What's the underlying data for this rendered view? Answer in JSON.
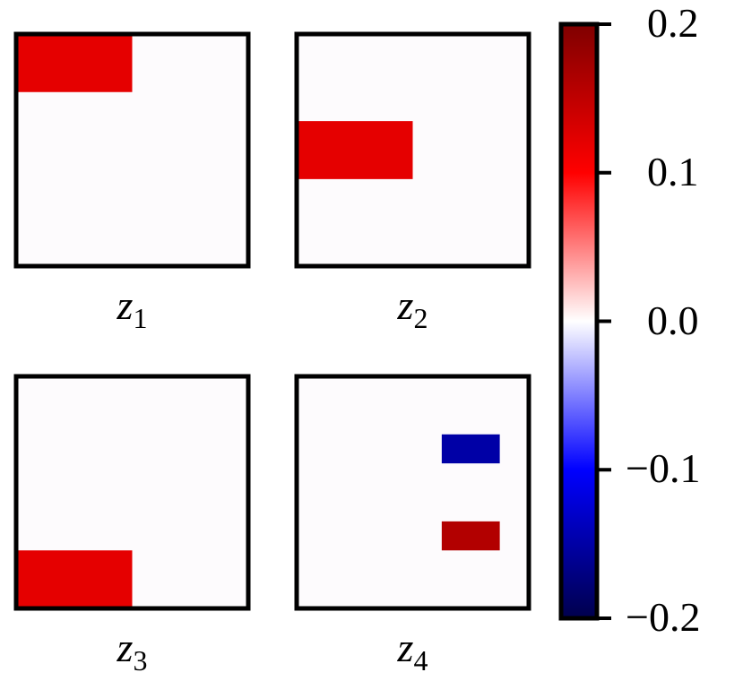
{
  "chart_data": {
    "type": "heatmap",
    "panels": [
      {
        "name": "z",
        "subscript": "1",
        "grid": [
          8,
          8
        ],
        "cells": [
          {
            "row": 0,
            "col": 0,
            "row_span": 2,
            "col_span": 4,
            "value": 0.12
          }
        ]
      },
      {
        "name": "z",
        "subscript": "2",
        "grid": [
          8,
          8
        ],
        "cells": [
          {
            "row": 3,
            "col": 0,
            "row_span": 2,
            "col_span": 4,
            "value": 0.12
          }
        ]
      },
      {
        "name": "z",
        "subscript": "3",
        "grid": [
          8,
          8
        ],
        "cells": [
          {
            "row": 6,
            "col": 0,
            "row_span": 2,
            "col_span": 4,
            "value": 0.12
          }
        ]
      },
      {
        "name": "z",
        "subscript": "4",
        "grid": [
          8,
          8
        ],
        "cells": [
          {
            "row": 2,
            "col": 5,
            "row_span": 1,
            "col_span": 2,
            "value": -0.15
          },
          {
            "row": 5,
            "col": 5,
            "row_span": 1,
            "col_span": 2,
            "value": 0.16
          }
        ]
      }
    ],
    "background_value": 0.0,
    "colorbar": {
      "cmap": "seismic",
      "range": [
        -0.2,
        0.2
      ],
      "ticks": [
        0.2,
        0.1,
        0.0,
        -0.1,
        -0.2
      ],
      "tick_labels": [
        "0.2",
        "0.1",
        "0.0",
        "−0.1",
        "−0.2"
      ],
      "colors": {
        "min": "#00004c",
        "low": "#0000ff",
        "mid": "#ffffff",
        "high": "#ff0000",
        "max": "#7f0000"
      }
    }
  }
}
